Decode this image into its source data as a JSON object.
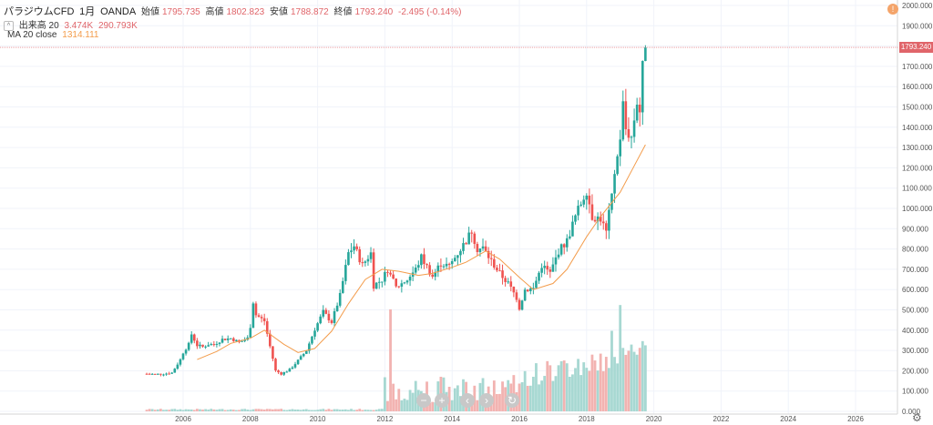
{
  "header": {
    "title": "パラジウムCFD",
    "interval": "1月",
    "source": "OANDA",
    "open_label": "始値",
    "open_value": "1795.735",
    "high_label": "高値",
    "high_value": "1802.823",
    "low_label": "安値",
    "low_value": "1788.872",
    "close_label": "終値",
    "close_value": "1793.240",
    "change": "-2.495 (-0.14%)"
  },
  "volume_legend": {
    "label": "出来高 20",
    "value1": "3.474K",
    "value2": "290.793K"
  },
  "ma_legend": {
    "label": "MA 20 close",
    "value": "1314.111"
  },
  "current_price": "1793.240",
  "colors": {
    "up": "#26a69a",
    "down": "#ef5350",
    "ma": "#f39c4b",
    "price": "#e0656a"
  },
  "icons": [
    "collapse-icon",
    "zoom-out-icon",
    "zoom-in-icon",
    "scroll-left-icon",
    "scroll-right-icon",
    "reset-icon",
    "settings-gear-icon",
    "alert-badge-icon"
  ],
  "chart_data": {
    "type": "candlestick",
    "price_ticks": [
      "2000.000",
      "1900.000",
      "1800.000",
      "1700.000",
      "1600.000",
      "1500.000",
      "1400.000",
      "1300.000",
      "1200.000",
      "1100.000",
      "1000.000",
      "900.000",
      "800.000",
      "700.000",
      "600.000",
      "500.000",
      "400.000",
      "300.000",
      "200.000",
      "100.000",
      "0.000"
    ],
    "year_ticks": [
      "2006",
      "2008",
      "2010",
      "2012",
      "2014",
      "2016",
      "2018",
      "2020",
      "2022",
      "2024",
      "2026"
    ],
    "ylim": [
      0,
      2000
    ],
    "close_path": [
      [
        "2004-12",
        185
      ],
      [
        "2005-03",
        183
      ],
      [
        "2005-06",
        185
      ],
      [
        "2005-09",
        190
      ],
      [
        "2005-12",
        255
      ],
      [
        "2006-01",
        290
      ],
      [
        "2006-03",
        330
      ],
      [
        "2006-04",
        380
      ],
      [
        "2006-06",
        325
      ],
      [
        "2006-08",
        318
      ],
      [
        "2006-10",
        330
      ],
      [
        "2006-12",
        330
      ],
      [
        "2007-03",
        355
      ],
      [
        "2007-06",
        360
      ],
      [
        "2007-09",
        340
      ],
      [
        "2007-12",
        360
      ],
      [
        "2008-01",
        420
      ],
      [
        "2008-02",
        540
      ],
      [
        "2008-03",
        475
      ],
      [
        "2008-06",
        445
      ],
      [
        "2008-08",
        320
      ],
      [
        "2008-10",
        200
      ],
      [
        "2008-12",
        185
      ],
      [
        "2009-03",
        205
      ],
      [
        "2009-06",
        250
      ],
      [
        "2009-09",
        300
      ],
      [
        "2009-12",
        405
      ],
      [
        "2010-03",
        490
      ],
      [
        "2010-06",
        440
      ],
      [
        "2010-09",
        570
      ],
      [
        "2010-12",
        780
      ],
      [
        "2011-02",
        815
      ],
      [
        "2011-05",
        720
      ],
      [
        "2011-08",
        780
      ],
      [
        "2011-09",
        620
      ],
      [
        "2011-12",
        650
      ],
      [
        "2012-02",
        700
      ],
      [
        "2012-05",
        610
      ],
      [
        "2012-09",
        650
      ],
      [
        "2012-12",
        700
      ],
      [
        "2013-02",
        760
      ],
      [
        "2013-06",
        665
      ],
      [
        "2013-09",
        730
      ],
      [
        "2013-12",
        715
      ],
      [
        "2014-03",
        780
      ],
      [
        "2014-06",
        840
      ],
      [
        "2014-08",
        890
      ],
      [
        "2014-10",
        800
      ],
      [
        "2014-12",
        805
      ],
      [
        "2015-03",
        740
      ],
      [
        "2015-06",
        680
      ],
      [
        "2015-09",
        630
      ],
      [
        "2015-12",
        560
      ],
      [
        "2016-01",
        510
      ],
      [
        "2016-03",
        600
      ],
      [
        "2016-06",
        605
      ],
      [
        "2016-09",
        720
      ],
      [
        "2016-12",
        680
      ],
      [
        "2017-03",
        790
      ],
      [
        "2017-06",
        840
      ],
      [
        "2017-09",
        960
      ],
      [
        "2017-12",
        1060
      ],
      [
        "2018-01",
        1090
      ],
      [
        "2018-03",
        960
      ],
      [
        "2018-06",
        950
      ],
      [
        "2018-08",
        880
      ],
      [
        "2018-10",
        1060
      ],
      [
        "2018-12",
        1270
      ],
      [
        "2019-01",
        1330
      ],
      [
        "2019-02",
        1510
      ],
      [
        "2019-03",
        1390
      ],
      [
        "2019-05",
        1350
      ],
      [
        "2019-07",
        1530
      ],
      [
        "2019-08",
        1480
      ],
      [
        "2019-09",
        1690
      ],
      [
        "2019-10",
        1793
      ]
    ],
    "ma_path": [
      [
        "2006-06",
        255
      ],
      [
        "2007-01",
        295
      ],
      [
        "2007-06",
        335
      ],
      [
        "2008-01",
        360
      ],
      [
        "2008-06",
        400
      ],
      [
        "2009-01",
        330
      ],
      [
        "2009-06",
        290
      ],
      [
        "2009-12",
        310
      ],
      [
        "2010-06",
        395
      ],
      [
        "2010-12",
        530
      ],
      [
        "2011-06",
        650
      ],
      [
        "2011-12",
        700
      ],
      [
        "2012-06",
        690
      ],
      [
        "2013-01",
        670
      ],
      [
        "2013-06",
        680
      ],
      [
        "2014-01",
        710
      ],
      [
        "2014-06",
        735
      ],
      [
        "2015-01",
        790
      ],
      [
        "2015-06",
        750
      ],
      [
        "2016-01",
        660
      ],
      [
        "2016-06",
        600
      ],
      [
        "2017-01",
        630
      ],
      [
        "2017-06",
        700
      ],
      [
        "2018-01",
        860
      ],
      [
        "2018-06",
        960
      ],
      [
        "2019-01",
        1080
      ],
      [
        "2019-06",
        1210
      ],
      [
        "2019-10",
        1314
      ]
    ],
    "volume_spikes": [
      [
        "2012-03",
        475
      ],
      [
        "2019-01",
        495
      ],
      [
        "2018-10",
        375
      ]
    ]
  }
}
